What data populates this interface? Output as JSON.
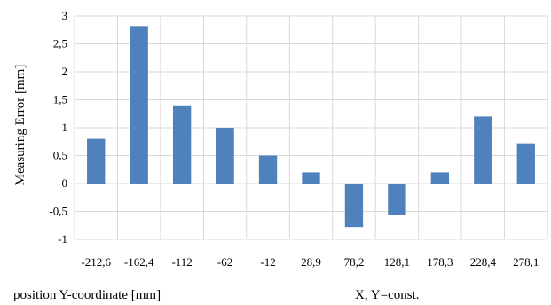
{
  "chart_data": {
    "type": "bar",
    "ylabel": "Measuring Error [mm]",
    "xlabel": "position Y-coordinate [mm]",
    "annotation": "X, Y=const.",
    "categories": [
      "-212,6",
      "-162,4",
      "-112",
      "-62",
      "-12",
      "28,9",
      "78,2",
      "128,1",
      "178,3",
      "228,4",
      "278,1"
    ],
    "values": [
      0.8,
      2.82,
      1.4,
      1.0,
      0.5,
      0.2,
      -0.78,
      -0.57,
      0.2,
      1.2,
      0.72
    ],
    "ylim": [
      -1,
      3
    ],
    "yticks": [
      3,
      2.5,
      2,
      1.5,
      1,
      0.5,
      0,
      -0.5,
      -1
    ],
    "ytick_labels": [
      "3",
      "2,5",
      "2",
      "1,5",
      "1",
      "0,5",
      "0",
      "-0,5",
      "-1"
    ],
    "grid": true,
    "bar_color": "#4f81bd",
    "grid_color": "#d9d9d9"
  }
}
